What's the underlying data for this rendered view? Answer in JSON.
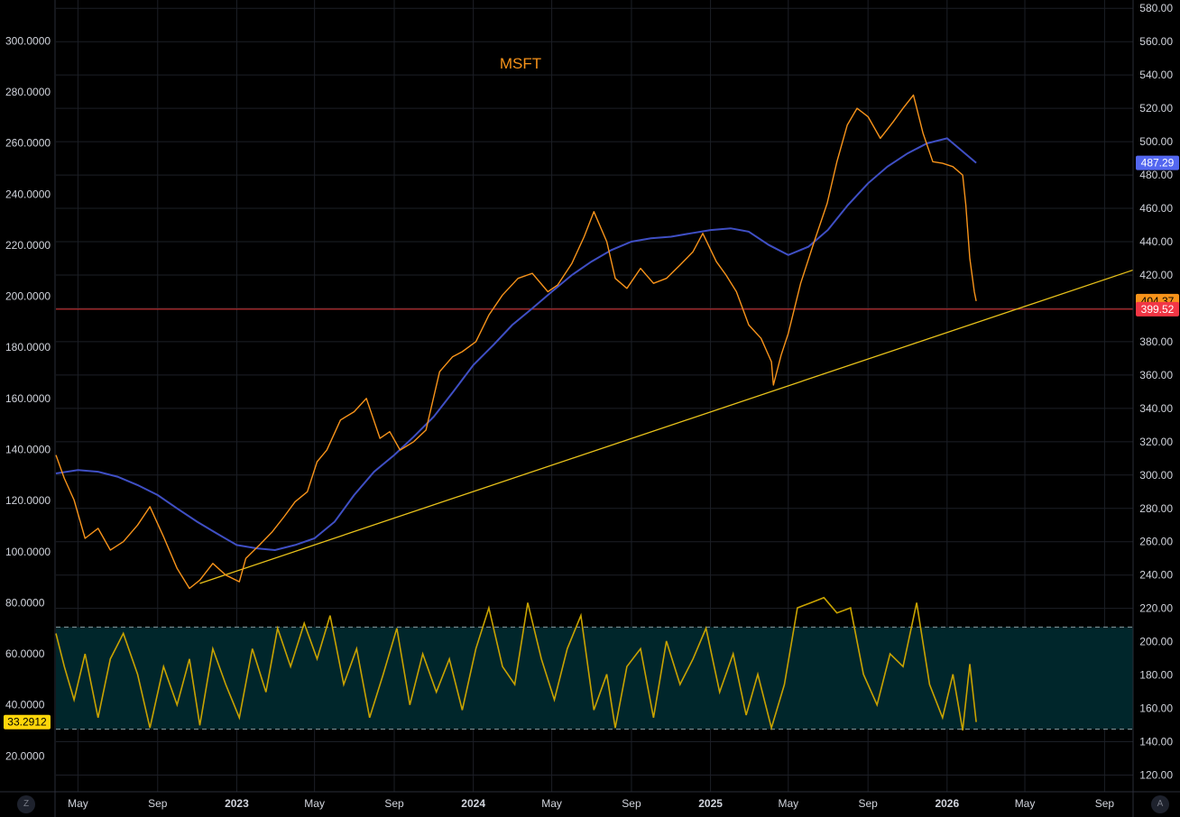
{
  "title": "MSFT",
  "colors": {
    "background": "#000000",
    "grid": "#1c1f26",
    "price": "#f7931a",
    "ma": "#3f4fc4",
    "ma_badge": "#5367f0",
    "trendline": "#e8c21a",
    "support": "#e03030",
    "current_badge": "#f7931a",
    "support_badge": "#f23645",
    "oscillator": "#c9a300",
    "band_fill": "#00262b",
    "band_line": "#8a9aa0",
    "left_badge": "#ffd60a"
  },
  "chart_data": {
    "type": "line",
    "title": "MSFT",
    "x_ticks": [
      "May",
      "Sep",
      "2023",
      "May",
      "Sep",
      "2024",
      "May",
      "Sep",
      "2025",
      "May",
      "Sep",
      "2026",
      "May",
      "Sep"
    ],
    "x_tick_dates": [
      "2022-05-01",
      "2022-09-01",
      "2023-01-01",
      "2023-05-01",
      "2023-09-01",
      "2024-01-01",
      "2024-05-01",
      "2024-09-01",
      "2025-01-01",
      "2025-05-01",
      "2025-09-01",
      "2026-01-01",
      "2026-05-01",
      "2026-09-01"
    ],
    "x_range": [
      "2022-03-28",
      "2026-10-15"
    ],
    "price_axis": {
      "ticks": [
        "580.00",
        "560.00",
        "540.00",
        "520.00",
        "500.00",
        "480.00",
        "460.00",
        "440.00",
        "420.00",
        "400.00",
        "380.00",
        "360.00",
        "340.00",
        "320.00",
        "300.00",
        "280.00",
        "260.00",
        "240.00",
        "220.00",
        "200.00",
        "180.00",
        "160.00",
        "140.00",
        "120.00"
      ],
      "range": [
        110,
        585
      ]
    },
    "oscillator_axis": {
      "ticks": [
        "300.0000",
        "280.0000",
        "260.0000",
        "240.0000",
        "220.0000",
        "200.0000",
        "180.0000",
        "160.0000",
        "140.0000",
        "120.0000",
        "100.0000",
        "80.0000",
        "60.0000",
        "40.0000",
        "20.0000"
      ],
      "range": [
        6,
        316
      ]
    },
    "series": [
      {
        "type": "line",
        "x": [
          "2022-03-28",
          "2022-04-10",
          "2022-04-25",
          "2022-05-12",
          "2022-06-01",
          "2022-06-20",
          "2022-07-10",
          "2022-08-01",
          "2022-08-20",
          "2022-09-10",
          "2022-10-01",
          "2022-10-20",
          "2022-11-05",
          "2022-11-25",
          "2022-12-15",
          "2023-01-05",
          "2023-01-15",
          "2023-02-05",
          "2023-02-25",
          "2023-03-15",
          "2023-04-01",
          "2023-04-20",
          "2023-05-05",
          "2023-05-20",
          "2023-06-10",
          "2023-07-01",
          "2023-07-20",
          "2023-08-10",
          "2023-08-25",
          "2023-09-10",
          "2023-10-01",
          "2023-10-20",
          "2023-11-10",
          "2023-11-30",
          "2023-12-15",
          "2024-01-05",
          "2024-01-25",
          "2024-02-15",
          "2024-03-10",
          "2024-04-01",
          "2024-04-25",
          "2024-05-10",
          "2024-06-01",
          "2024-06-20",
          "2024-07-05",
          "2024-07-25",
          "2024-08-07",
          "2024-08-25",
          "2024-09-15",
          "2024-10-05",
          "2024-10-25",
          "2024-11-15",
          "2024-12-05",
          "2024-12-20",
          "2025-01-10",
          "2025-01-25",
          "2025-02-10",
          "2025-03-01",
          "2025-03-20",
          "2025-04-05",
          "2025-04-08",
          "2025-04-20",
          "2025-05-01",
          "2025-05-20",
          "2025-06-10",
          "2025-06-30",
          "2025-07-15",
          "2025-07-31",
          "2025-08-15",
          "2025-09-01",
          "2025-09-20",
          "2025-10-10",
          "2025-10-25",
          "2025-11-10",
          "2025-11-25",
          "2025-12-10",
          "2025-12-25",
          "2026-01-10",
          "2026-01-25",
          "2026-01-30",
          "2026-02-05",
          "2026-02-12",
          "2026-02-15"
        ],
        "values": [
          312,
          298,
          285,
          262,
          268,
          255,
          260,
          270,
          281,
          263,
          244,
          232,
          237,
          247,
          240,
          236,
          250,
          258,
          266,
          275,
          284,
          290,
          308,
          315,
          333,
          338,
          346,
          322,
          326,
          315,
          320,
          327,
          362,
          371,
          374,
          380,
          396,
          408,
          418,
          421,
          410,
          414,
          427,
          443,
          458,
          440,
          418,
          412,
          424,
          415,
          418,
          426,
          434,
          445,
          428,
          420,
          410,
          390,
          382,
          368,
          354,
          372,
          385,
          415,
          440,
          463,
          488,
          510,
          520,
          515,
          502,
          512,
          520,
          528,
          505,
          488,
          487,
          485,
          480,
          462,
          430,
          410,
          404.37
        ],
        "name": ""
      },
      {
        "type": "line",
        "x": [
          "2022-03-28",
          "2022-05-01",
          "2022-06-01",
          "2022-07-01",
          "2022-08-01",
          "2022-09-01",
          "2022-10-01",
          "2022-11-01",
          "2022-12-01",
          "2023-01-01",
          "2023-02-01",
          "2023-03-01",
          "2023-04-01",
          "2023-05-01",
          "2023-06-01",
          "2023-07-01",
          "2023-08-01",
          "2023-09-01",
          "2023-10-01",
          "2023-11-01",
          "2023-12-01",
          "2024-01-01",
          "2024-02-01",
          "2024-03-01",
          "2024-04-01",
          "2024-05-01",
          "2024-06-01",
          "2024-07-01",
          "2024-08-01",
          "2024-09-01",
          "2024-10-01",
          "2024-11-01",
          "2024-12-01",
          "2025-01-01",
          "2025-02-01",
          "2025-03-01",
          "2025-04-01",
          "2025-05-01",
          "2025-06-01",
          "2025-07-01",
          "2025-08-01",
          "2025-09-01",
          "2025-10-01",
          "2025-11-01",
          "2025-12-01",
          "2026-01-01",
          "2026-02-15"
        ],
        "values": [
          301,
          303,
          302,
          299,
          294,
          288,
          280,
          272,
          265,
          258,
          256,
          255,
          258,
          262,
          272,
          288,
          302,
          312,
          323,
          335,
          350,
          366,
          378,
          390,
          400,
          410,
          420,
          428,
          435,
          440,
          442,
          443,
          445,
          447,
          448,
          446,
          438,
          432,
          437,
          447,
          462,
          475,
          485,
          493,
          499,
          502,
          487.29
        ],
        "name": ""
      }
    ],
    "trendline": {
      "x": [
        "2022-11-05",
        "2026-10-15"
      ],
      "y": [
        235,
        423
      ]
    },
    "support_level": 399.52,
    "price_labels": {
      "ma_last": "487.29",
      "current": "404.37",
      "support": "399.52"
    },
    "oscillator": {
      "name": "",
      "x": [
        "2022-03-28",
        "2022-04-10",
        "2022-04-25",
        "2022-05-12",
        "2022-06-01",
        "2022-06-20",
        "2022-07-10",
        "2022-08-01",
        "2022-08-20",
        "2022-09-10",
        "2022-10-01",
        "2022-10-20",
        "2022-11-05",
        "2022-11-25",
        "2022-12-15",
        "2023-01-05",
        "2023-01-25",
        "2023-02-15",
        "2023-03-05",
        "2023-03-25",
        "2023-04-15",
        "2023-05-05",
        "2023-05-25",
        "2023-06-15",
        "2023-07-05",
        "2023-07-25",
        "2023-08-15",
        "2023-09-05",
        "2023-09-25",
        "2023-10-15",
        "2023-11-05",
        "2023-11-25",
        "2023-12-15",
        "2024-01-05",
        "2024-01-25",
        "2024-02-15",
        "2024-03-05",
        "2024-03-25",
        "2024-04-15",
        "2024-05-05",
        "2024-05-25",
        "2024-06-15",
        "2024-07-05",
        "2024-07-25",
        "2024-08-07",
        "2024-08-25",
        "2024-09-15",
        "2024-10-05",
        "2024-10-25",
        "2024-11-15",
        "2024-12-05",
        "2024-12-25",
        "2025-01-15",
        "2025-02-05",
        "2025-02-25",
        "2025-03-15",
        "2025-04-05",
        "2025-04-25",
        "2025-05-15",
        "2025-06-05",
        "2025-06-25",
        "2025-07-15",
        "2025-08-05",
        "2025-08-25",
        "2025-09-15",
        "2025-10-05",
        "2025-10-25",
        "2025-11-15",
        "2025-12-05",
        "2025-12-25",
        "2026-01-10",
        "2026-01-25",
        "2026-02-05",
        "2026-02-15"
      ],
      "values": [
        68,
        55,
        42,
        60,
        35,
        58,
        68,
        52,
        31,
        55,
        40,
        58,
        32,
        62,
        48,
        35,
        62,
        45,
        70,
        55,
        72,
        58,
        75,
        48,
        62,
        35,
        52,
        70,
        40,
        60,
        45,
        58,
        38,
        62,
        78,
        55,
        48,
        80,
        58,
        42,
        62,
        75,
        38,
        52,
        31,
        55,
        62,
        35,
        65,
        48,
        58,
        70,
        45,
        60,
        36,
        52,
        31,
        48,
        78,
        80,
        82,
        76,
        78,
        52,
        40,
        60,
        55,
        80,
        48,
        35,
        52,
        30,
        56,
        33.2912
      ],
      "band_upper": 70.5,
      "band_lower": 30.5,
      "last_label": "33.2912"
    }
  },
  "corner_buttons": {
    "left": "Z",
    "right": "A"
  }
}
